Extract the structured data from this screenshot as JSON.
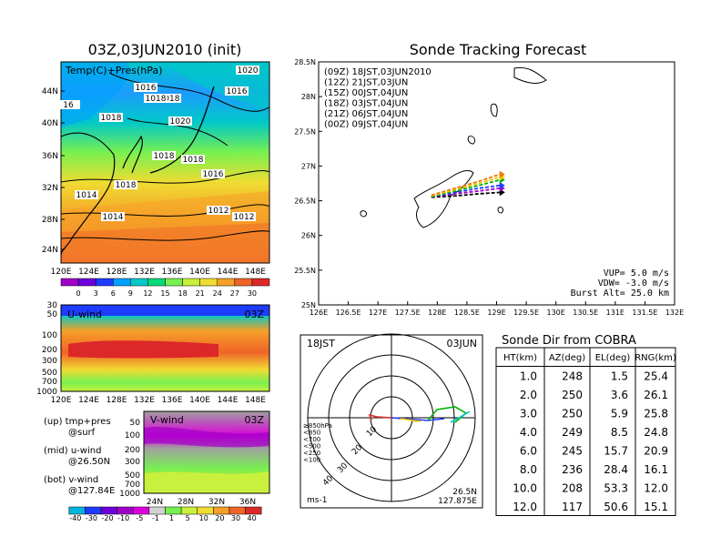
{
  "init_panel": {
    "title": "03Z,03JUN2010 (init)",
    "label": "Temp(C)+Pres(hPa)",
    "lat_ticks": [
      "44N",
      "40N",
      "36N",
      "32N",
      "28N",
      "24N"
    ],
    "lon_ticks": [
      "120E",
      "124E",
      "128E",
      "132E",
      "136E",
      "140E",
      "144E",
      "148E"
    ],
    "colorbar_ticks": [
      "0",
      "3",
      "6",
      "9",
      "12",
      "15",
      "18",
      "21",
      "24",
      "27",
      "30"
    ],
    "colors": [
      "#a000c8",
      "#6e00dc",
      "#1e3cff",
      "#00a0ff",
      "#00c8c8",
      "#00dc78",
      "#78f050",
      "#c8f03c",
      "#f0dc32",
      "#f5a028",
      "#f06428",
      "#dc2828"
    ],
    "isobar_labels": [
      "1020",
      "1016",
      "1018",
      "1018",
      "1016",
      "1020",
      "1018",
      "1018",
      "1018",
      "1016",
      "1018",
      "1014",
      "1014",
      "1012",
      "1012",
      "16"
    ]
  },
  "u_panel": {
    "label": "U-wind",
    "time": "03Z",
    "p_ticks": [
      "30",
      "50",
      "100",
      "200",
      "300",
      "500",
      "700",
      "1000"
    ],
    "lon_ticks": [
      "120E",
      "124E",
      "128E",
      "132E",
      "136E",
      "140E",
      "144E",
      "148E"
    ]
  },
  "notes": {
    "l1": "(up) tmp+pres",
    "l2": "@surf",
    "l3": "(mid) u-wind",
    "l4": "@26.50N",
    "l5": "(bot) v-wind",
    "l6": "@127.84E"
  },
  "v_panel": {
    "label": "V-wind",
    "time": "03Z",
    "p_ticks": [
      "50",
      "100",
      "200",
      "300",
      "500",
      "700",
      "1000"
    ],
    "lat_ticks": [
      "24N",
      "28N",
      "32N",
      "36N"
    ],
    "colorbar_ticks": [
      "-40",
      "-30",
      "-20",
      "-10",
      "-5",
      "-1",
      "1",
      "5",
      "10",
      "20",
      "30",
      "40"
    ],
    "colors": [
      "#00b4dc",
      "#1e3cff",
      "#6e00dc",
      "#a000c8",
      "#dc00dc",
      "#d2d2d2",
      "#78f050",
      "#c8f03c",
      "#f0dc32",
      "#f5a028",
      "#f06428",
      "#dc2828"
    ]
  },
  "track_panel": {
    "title": "Sonde Tracking Forecast",
    "lat_ticks": [
      "28.5N",
      "28N",
      "27.5N",
      "27N",
      "26.5N",
      "26N",
      "25.5N",
      "25N"
    ],
    "lon_ticks": [
      "126E",
      "126.5E",
      "127E",
      "127.5E",
      "128E",
      "128.5E",
      "129E",
      "129.5E",
      "130E",
      "130.5E",
      "131E",
      "131.5E",
      "132E"
    ],
    "legend": [
      {
        "text": "(09Z) 18JST,03JUN2010",
        "color": "#000000"
      },
      {
        "text": "(12Z) 21JST,03JUN",
        "color": "#a000c8"
      },
      {
        "text": "(15Z) 00JST,04JUN",
        "color": "#1e3cff"
      },
      {
        "text": "(18Z) 03JST,04JUN",
        "color": "#00b400"
      },
      {
        "text": "(21Z) 06JST,04JUN",
        "color": "#f0c800"
      },
      {
        "text": "(00Z) 09JST,04JUN",
        "color": "#f07800"
      }
    ],
    "params": {
      "vup": "VUP= 5.0 m/s",
      "vdw": "VDW= -3.0 m/s",
      "burst": "Burst Alt= 25.0 km"
    }
  },
  "polar_panel": {
    "time_label": "18JST",
    "date_label": "03JUN",
    "speed_labels": [
      "10",
      "20",
      "30",
      "40"
    ],
    "level_legend": [
      {
        "text": "≥850hPa",
        "color": "#dc2828"
      },
      {
        "text": "<850",
        "color": "#f0c800"
      },
      {
        "text": "<700",
        "color": "#f07800"
      },
      {
        "text": "<500",
        "color": "#00b400"
      },
      {
        "text": "<250",
        "color": "#00c8c8"
      },
      {
        "text": "<100",
        "color": "#1e3cff"
      }
    ],
    "units": "ms-1",
    "loc_lat": "26.5N",
    "loc_lon": "127.875E"
  },
  "table_panel": {
    "title": "Sonde Dir from COBRA",
    "headers": [
      "HT(km)",
      "AZ(deg)",
      "EL(deg)",
      "RNG(km)"
    ],
    "rows": [
      [
        "1.0",
        "248",
        "1.5",
        "25.4"
      ],
      [
        "2.0",
        "250",
        "3.6",
        "26.1"
      ],
      [
        "3.0",
        "250",
        "5.9",
        "25.8"
      ],
      [
        "4.0",
        "249",
        "8.5",
        "24.8"
      ],
      [
        "6.0",
        "245",
        "15.7",
        "20.9"
      ],
      [
        "8.0",
        "236",
        "28.4",
        "16.1"
      ],
      [
        "10.0",
        "208",
        "53.3",
        "12.0"
      ],
      [
        "12.0",
        "117",
        "50.6",
        "15.1"
      ]
    ]
  },
  "chart_data": [
    {
      "type": "heatmap",
      "title": "03Z,03JUN2010 (init)",
      "subtitle": "Temp(C)+Pres(hPa)",
      "xlabel": "",
      "ylabel": "",
      "xlim": [
        120,
        150
      ],
      "ylim": [
        22,
        47
      ],
      "colorbar": [
        0,
        3,
        6,
        9,
        12,
        15,
        18,
        21,
        24,
        27,
        30
      ],
      "isobars_hPa": [
        1012,
        1014,
        1016,
        1018,
        1020
      ]
    },
    {
      "type": "heatmap",
      "title": "U-wind",
      "xlim": [
        120,
        150
      ],
      "pressure_levels_hPa": [
        30,
        50,
        100,
        200,
        300,
        500,
        700,
        1000
      ]
    },
    {
      "type": "heatmap",
      "title": "V-wind",
      "xlim": [
        22,
        38
      ],
      "pressure_levels_hPa": [
        50,
        100,
        200,
        300,
        500,
        700,
        1000
      ],
      "colorbar": [
        -40,
        -30,
        -20,
        -10,
        -5,
        -1,
        1,
        5,
        10,
        20,
        30,
        40
      ]
    },
    {
      "type": "line",
      "title": "Sonde Tracking Forecast",
      "xlim": [
        126,
        132
      ],
      "ylim": [
        25,
        28.5
      ],
      "series": [
        {
          "name": "(09Z) 18JST,03JUN2010",
          "x": [
            127.9,
            128.3,
            128.7,
            129.05
          ],
          "y": [
            26.55,
            26.57,
            26.6,
            26.62
          ]
        },
        {
          "name": "(12Z) 21JST,03JUN",
          "x": [
            127.9,
            128.3,
            128.7,
            129.05
          ],
          "y": [
            26.56,
            26.6,
            26.64,
            26.68
          ]
        },
        {
          "name": "(15Z) 00JST,04JUN",
          "x": [
            127.9,
            128.3,
            128.7,
            129.05
          ],
          "y": [
            26.56,
            26.62,
            26.68,
            26.72
          ]
        },
        {
          "name": "(18Z) 03JST,04JUN",
          "x": [
            127.9,
            128.3,
            128.7,
            129.05
          ],
          "y": [
            26.56,
            26.64,
            26.72,
            26.8
          ]
        },
        {
          "name": "(21Z) 06JST,04JUN",
          "x": [
            127.9,
            128.3,
            128.7,
            129.05
          ],
          "y": [
            26.57,
            26.66,
            26.75,
            26.84
          ]
        },
        {
          "name": "(00Z) 09JST,04JUN",
          "x": [
            127.9,
            128.3,
            128.7,
            129.05
          ],
          "y": [
            26.58,
            26.68,
            26.78,
            26.88
          ]
        }
      ]
    },
    {
      "type": "table",
      "title": "Sonde Dir from COBRA",
      "columns": [
        "HT(km)",
        "AZ(deg)",
        "EL(deg)",
        "RNG(km)"
      ],
      "rows": [
        [
          1.0,
          248,
          1.5,
          25.4
        ],
        [
          2.0,
          250,
          3.6,
          26.1
        ],
        [
          3.0,
          250,
          5.9,
          25.8
        ],
        [
          4.0,
          249,
          8.5,
          24.8
        ],
        [
          6.0,
          245,
          15.7,
          20.9
        ],
        [
          8.0,
          236,
          28.4,
          16.1
        ],
        [
          10.0,
          208,
          53.3,
          12.0
        ],
        [
          12.0,
          117,
          50.6,
          15.1
        ]
      ]
    }
  ]
}
